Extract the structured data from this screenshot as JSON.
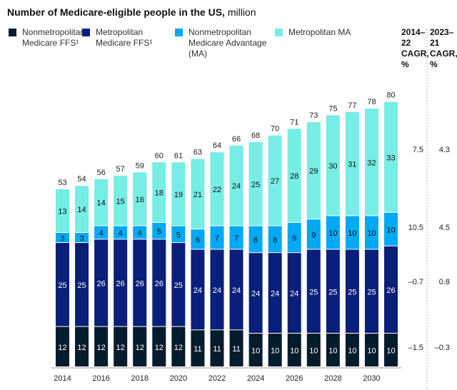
{
  "chart_data": {
    "type": "bar",
    "stacked": true,
    "title": "Number of Medicare-eligible people in the US,",
    "title_unit": "million",
    "categories": [
      "2014",
      "2015",
      "2016",
      "2017",
      "2018",
      "2019",
      "2020",
      "2021",
      "2022",
      "2023",
      "2024",
      "2025",
      "2026",
      "2027",
      "2028",
      "2029",
      "2030",
      "2031"
    ],
    "tick_labels": [
      "2014",
      "2016",
      "2018",
      "2020",
      "2022",
      "2024",
      "2026",
      "2028",
      "2030"
    ],
    "series": [
      {
        "name": "Nonmetropolitan\nMedicare FFS¹",
        "color": "#051c2c",
        "values": [
          12,
          12,
          12,
          12,
          12,
          12,
          12,
          11,
          11,
          11,
          10,
          10,
          10,
          10,
          10,
          10,
          10,
          10
        ]
      },
      {
        "name": "Metropolitan\nMedicare FFS¹",
        "color": "#0a1f7a",
        "values": [
          25,
          25,
          26,
          26,
          26,
          26,
          25,
          24,
          24,
          24,
          24,
          24,
          24,
          25,
          25,
          25,
          25,
          26
        ]
      },
      {
        "name": "Nonmetropolitan\nMedicare Advantage\n(MA)",
        "color": "#00a9f4",
        "values": [
          3,
          3,
          4,
          4,
          4,
          5,
          5,
          6,
          7,
          7,
          8,
          8,
          9,
          9,
          10,
          10,
          10,
          10
        ]
      },
      {
        "name": "Metropolitan MA",
        "color": "#76ede5",
        "values": [
          13,
          14,
          14,
          15,
          16,
          18,
          19,
          21,
          22,
          24,
          25,
          27,
          28,
          29,
          30,
          31,
          32,
          33
        ]
      }
    ],
    "totals": [
      53,
      54,
      56,
      57,
      59,
      60,
      61,
      63,
      64,
      66,
      68,
      70,
      71,
      73,
      75,
      77,
      78,
      80
    ],
    "ylim": [
      0,
      80
    ],
    "grid": false,
    "cagr": {
      "headers": [
        "2014–\n22\nCAGR,\n%",
        "2023–\n21\nCAGR,\n%"
      ],
      "rows": [
        {
          "values": [
            "7.5",
            "4.3"
          ]
        },
        {
          "values": [
            "10.5",
            "4.5"
          ]
        },
        {
          "values": [
            "–0.7",
            "0.8"
          ]
        },
        {
          "values": [
            "–1.5",
            "–0.3"
          ]
        }
      ]
    }
  }
}
